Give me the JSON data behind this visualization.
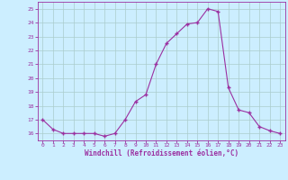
{
  "x": [
    0,
    1,
    2,
    3,
    4,
    5,
    6,
    7,
    8,
    9,
    10,
    11,
    12,
    13,
    14,
    15,
    16,
    17,
    18,
    19,
    20,
    21,
    22,
    23
  ],
  "y": [
    17.0,
    16.3,
    16.0,
    16.0,
    16.0,
    16.0,
    15.8,
    16.0,
    17.0,
    18.3,
    18.8,
    21.0,
    22.5,
    23.2,
    23.9,
    24.0,
    25.0,
    24.8,
    19.3,
    17.7,
    17.5,
    16.5,
    16.2,
    16.0
  ],
  "line_color": "#9b30a0",
  "marker_color": "#9b30a0",
  "bg_color": "#cceeff",
  "grid_color": "#aacccc",
  "xlabel": "Windchill (Refroidissement éolien,°C)",
  "xlabel_color": "#9b30a0",
  "tick_color": "#9b30a0",
  "ylim": [
    15.5,
    25.5
  ],
  "xlim": [
    -0.5,
    23.5
  ],
  "yticks": [
    16,
    17,
    18,
    19,
    20,
    21,
    22,
    23,
    24,
    25
  ],
  "xticks": [
    0,
    1,
    2,
    3,
    4,
    5,
    6,
    7,
    8,
    9,
    10,
    11,
    12,
    13,
    14,
    15,
    16,
    17,
    18,
    19,
    20,
    21,
    22,
    23
  ]
}
